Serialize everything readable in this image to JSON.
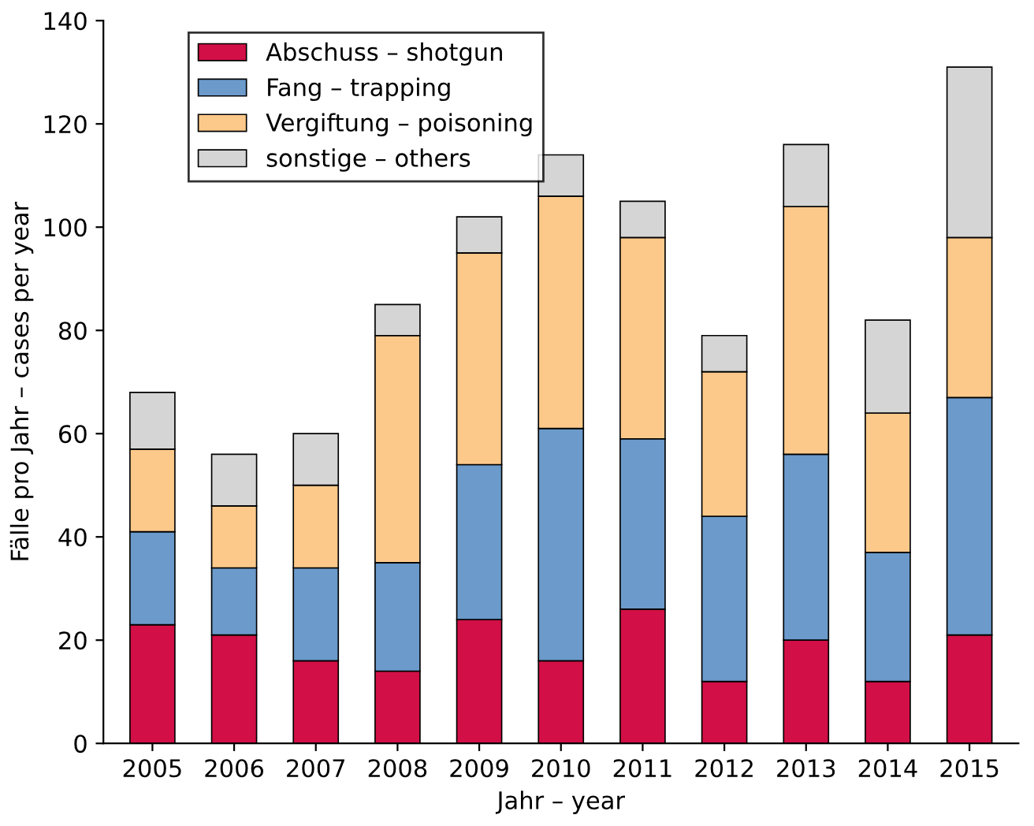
{
  "chart_data": {
    "type": "bar",
    "stacked": true,
    "xlabel": "Jahr – year",
    "ylabel": "Fälle pro Jahr – cases per year",
    "categories": [
      "2005",
      "2006",
      "2007",
      "2008",
      "2009",
      "2010",
      "2011",
      "2012",
      "2013",
      "2014",
      "2015"
    ],
    "series": [
      {
        "name": "Abschuss – shotgun",
        "color": "#d20f46",
        "values": [
          23,
          21,
          16,
          14,
          24,
          16,
          26,
          12,
          20,
          12,
          21
        ]
      },
      {
        "name": "Fang – trapping",
        "color": "#6b9acb",
        "values": [
          18,
          13,
          18,
          21,
          30,
          45,
          33,
          32,
          36,
          25,
          46
        ]
      },
      {
        "name": "Vergiftung – poisoning",
        "color": "#fdc98a",
        "values": [
          16,
          12,
          16,
          44,
          41,
          45,
          39,
          28,
          48,
          27,
          31
        ]
      },
      {
        "name": "sonstige – others",
        "color": "#d5d5d5",
        "values": [
          11,
          10,
          10,
          6,
          7,
          8,
          7,
          7,
          12,
          18,
          33
        ]
      }
    ],
    "ylim": [
      0,
      140
    ],
    "yticks": [
      0,
      20,
      40,
      60,
      80,
      100,
      120,
      140
    ],
    "grid": false,
    "legend": "top left"
  }
}
